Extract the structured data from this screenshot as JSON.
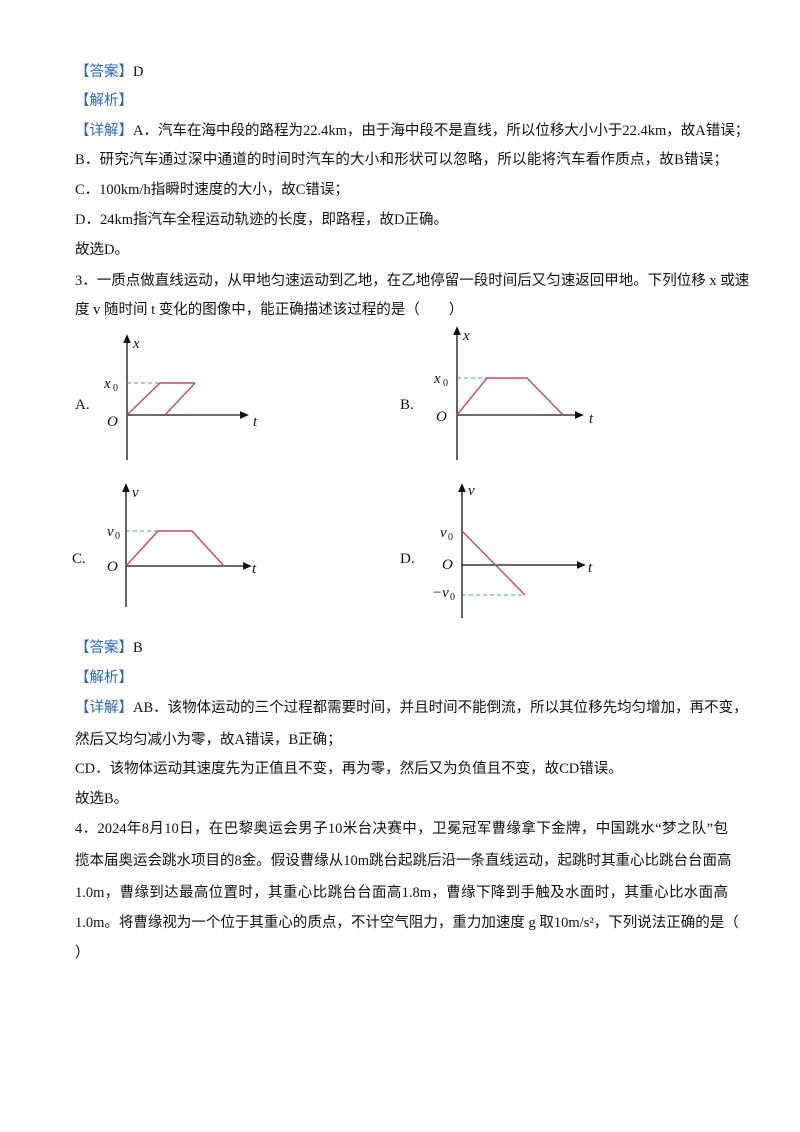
{
  "answer_2": {
    "label": "【答案】",
    "value": "D"
  },
  "analysis_2": {
    "label": "【解析】"
  },
  "detail_2": {
    "label": "【详解】",
    "lines": [
      "A．汽车在海中段的路程为22.4km，由于海中段不是直线，所以位移大小小于22.4km，故A错误；",
      "B．研究汽车通过深中通道的时间时汽车的大小和形状可以忽略，所以能将汽车看作质点，故B错误；",
      "C．100km/h指瞬时速度的大小，故C错误；",
      "D．24km指汽车全程运动轨迹的长度，即路程，故D正确。",
      "故选D。"
    ]
  },
  "question_3": {
    "lines": [
      "3．一质点做直线运动，从甲地匀速运动到乙地，在乙地停留一段时间后又匀速返回甲地。下列位移 x 或速",
      "度 v 随时间 t 变化的图像中，能正确描述该过程的是（　　）"
    ],
    "options": [
      {
        "label": "A.",
        "y_axis": "x",
        "level": "x",
        "level_sub": "0",
        "origin": "O",
        "t_axis": "t"
      },
      {
        "label": "B.",
        "y_axis": "x",
        "level": "x",
        "level_sub": "0",
        "origin": "O",
        "t_axis": "t"
      },
      {
        "label": "C.",
        "y_axis": "v",
        "level": "v",
        "level_sub": "0",
        "origin": "O",
        "t_axis": "t"
      },
      {
        "label": "D.",
        "y_axis": "v",
        "level": "v",
        "level_sub": "0",
        "origin": "O",
        "t_axis": "t",
        "neg_level": "−v",
        "neg_sub": "0"
      }
    ]
  },
  "answer_3": {
    "label": "【答案】",
    "value": "B"
  },
  "analysis_3": {
    "label": "【解析】"
  },
  "detail_3": {
    "label": "【详解】",
    "lines": [
      "AB．该物体运动的三个过程都需要时间，并且时间不能倒流，所以其位移先均匀增加，再不变，",
      "然后又均匀减小为零，故A错误，B正确；",
      "CD．该物体运动其速度先为正值且不变，再为零，然后又为负值且不变，故CD错误。",
      "故选B。"
    ]
  },
  "question_4": {
    "lines": [
      "4．2024年8月10日，在巴黎奥运会男子10米台决赛中，卫冕冠军曹缘拿下金牌，中国跳水“梦之队”包",
      "揽本届奥运会跳水项目的8金。假设曹缘从10m跳台起跳后沿一条直线运动，起跳时其重心比跳台台面高",
      "1.0m，曹缘到达最高位置时，其重心比跳台台面高1.8m，曹缘下降到手触及水面时，其重心比水面高",
      "1.0m。将曹缘视为一个位于其重心的质点，不计空气阻力，重力加速度 g 取10m/s²，下列说法正确的是（",
      "）"
    ]
  }
}
